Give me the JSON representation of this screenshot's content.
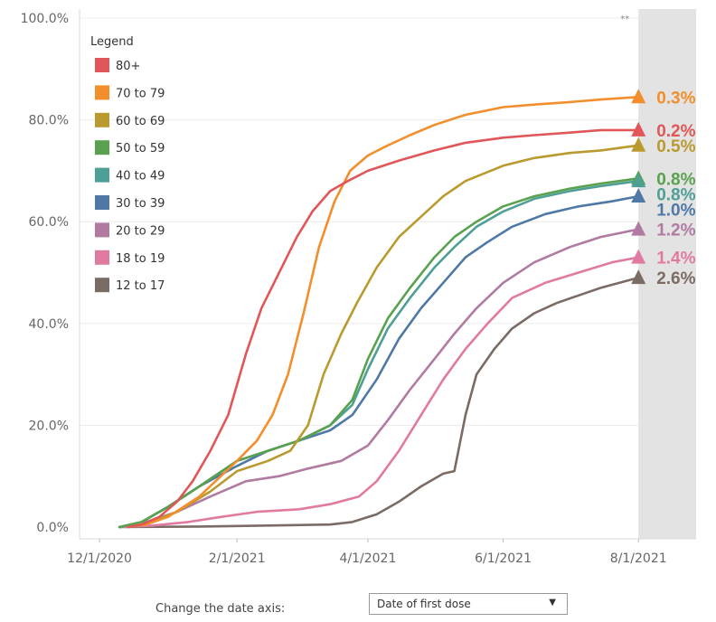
{
  "chart_data": {
    "type": "line",
    "legend_title": "Legend",
    "legend_position": "top-left",
    "ylim": [
      0,
      100
    ],
    "yticks": [
      0,
      20,
      40,
      60,
      80,
      100
    ],
    "ytick_labels": [
      "0.0%",
      "20.0%",
      "40.0%",
      "60.0%",
      "80.0%",
      "100.0%"
    ],
    "xlim": [
      "2020-11-22",
      "2021-08-27"
    ],
    "xticks": [
      "2020-12-01",
      "2021-02-01",
      "2021-04-01",
      "2021-06-01",
      "2021-08-01"
    ],
    "xtick_labels": [
      "12/1/2020",
      "2/1/2021",
      "4/1/2021",
      "6/1/2021",
      "8/1/2021"
    ],
    "shaded_region": {
      "from": "2021-08-01",
      "to": "2021-08-27",
      "note": "**",
      "color": "#e3e3e3"
    },
    "grid": "horizontal",
    "series": [
      {
        "name": "80+",
        "color": "#e15759",
        "end_label": "0.2%",
        "x": [
          "2020-12-14",
          "2020-12-20",
          "2020-12-28",
          "2021-01-05",
          "2021-01-12",
          "2021-01-20",
          "2021-01-28",
          "2021-02-05",
          "2021-02-12",
          "2021-02-20",
          "2021-02-28",
          "2021-03-07",
          "2021-03-15",
          "2021-03-23",
          "2021-04-01",
          "2021-04-15",
          "2021-05-01",
          "2021-05-15",
          "2021-06-01",
          "2021-06-15",
          "2021-07-01",
          "2021-07-15",
          "2021-08-01"
        ],
        "y": [
          0,
          0.5,
          2,
          5,
          9,
          15,
          22,
          34,
          43,
          50,
          57,
          62,
          66,
          68,
          70,
          72,
          74,
          75.5,
          76.5,
          77,
          77.5,
          78,
          78
        ]
      },
      {
        "name": "70 to 79",
        "color": "#f28e2b",
        "end_label": "0.3%",
        "x": [
          "2020-12-14",
          "2020-12-22",
          "2021-01-01",
          "2021-01-15",
          "2021-02-01",
          "2021-02-10",
          "2021-02-17",
          "2021-02-24",
          "2021-03-03",
          "2021-03-10",
          "2021-03-17",
          "2021-03-24",
          "2021-04-01",
          "2021-04-10",
          "2021-04-20",
          "2021-05-01",
          "2021-05-15",
          "2021-06-01",
          "2021-06-15",
          "2021-07-01",
          "2021-07-15",
          "2021-08-01"
        ],
        "y": [
          0,
          0.5,
          2,
          6,
          13,
          17,
          22,
          30,
          42,
          55,
          64,
          70,
          73,
          75,
          77,
          79,
          81,
          82.5,
          83,
          83.5,
          84,
          84.5
        ]
      },
      {
        "name": "60 to 69",
        "color": "#b99a2e",
        "end_label": "0.5%",
        "x": [
          "2020-12-14",
          "2020-12-24",
          "2021-01-05",
          "2021-01-20",
          "2021-02-01",
          "2021-02-15",
          "2021-02-25",
          "2021-03-05",
          "2021-03-12",
          "2021-03-20",
          "2021-03-27",
          "2021-04-05",
          "2021-04-15",
          "2021-04-25",
          "2021-05-05",
          "2021-05-15",
          "2021-06-01",
          "2021-06-15",
          "2021-07-01",
          "2021-07-15",
          "2021-08-01"
        ],
        "y": [
          0,
          1,
          3,
          7,
          11,
          13,
          15,
          20,
          30,
          38,
          44,
          51,
          57,
          61,
          65,
          68,
          71,
          72.5,
          73.5,
          74,
          75
        ]
      },
      {
        "name": "50 to 59",
        "color": "#59a14f",
        "end_label": "0.8%",
        "x": [
          "2020-12-10",
          "2020-12-20",
          "2021-01-01",
          "2021-01-15",
          "2021-02-01",
          "2021-02-15",
          "2021-03-01",
          "2021-03-15",
          "2021-03-25",
          "2021-04-01",
          "2021-04-10",
          "2021-04-20",
          "2021-05-01",
          "2021-05-10",
          "2021-05-20",
          "2021-06-01",
          "2021-06-15",
          "2021-07-01",
          "2021-07-15",
          "2021-08-01"
        ],
        "y": [
          0,
          1,
          4,
          8,
          13,
          15,
          17,
          20,
          25,
          33,
          41,
          47,
          53,
          57,
          60,
          63,
          65,
          66.5,
          67.5,
          68.5
        ]
      },
      {
        "name": "40 to 49",
        "color": "#4e9f95",
        "end_label": "0.8%",
        "x": [
          "2020-12-10",
          "2020-12-20",
          "2021-01-01",
          "2021-01-15",
          "2021-02-01",
          "2021-02-15",
          "2021-03-01",
          "2021-03-15",
          "2021-03-25",
          "2021-04-01",
          "2021-04-10",
          "2021-04-20",
          "2021-05-01",
          "2021-05-10",
          "2021-05-20",
          "2021-06-01",
          "2021-06-15",
          "2021-07-01",
          "2021-07-15",
          "2021-08-01"
        ],
        "y": [
          0,
          1,
          4,
          8,
          13,
          15,
          17,
          20,
          24,
          31,
          39,
          45,
          51,
          55,
          59,
          62,
          64.5,
          66,
          67,
          68
        ]
      },
      {
        "name": "30 to 39",
        "color": "#4e79a7",
        "end_label": "1.0%",
        "x": [
          "2020-12-10",
          "2020-12-20",
          "2021-01-01",
          "2021-01-15",
          "2021-02-01",
          "2021-02-15",
          "2021-03-01",
          "2021-03-15",
          "2021-03-25",
          "2021-04-05",
          "2021-04-15",
          "2021-04-25",
          "2021-05-05",
          "2021-05-15",
          "2021-05-25",
          "2021-06-05",
          "2021-06-20",
          "2021-07-05",
          "2021-07-20",
          "2021-08-01"
        ],
        "y": [
          0,
          1,
          4,
          8,
          12,
          15,
          17,
          19,
          22,
          29,
          37,
          43,
          48,
          53,
          56,
          59,
          61.5,
          63,
          64,
          65
        ]
      },
      {
        "name": "20 to 29",
        "color": "#b07aa1",
        "end_label": "1.2%",
        "x": [
          "2020-12-10",
          "2020-12-22",
          "2021-01-05",
          "2021-01-20",
          "2021-02-05",
          "2021-02-20",
          "2021-03-05",
          "2021-03-20",
          "2021-04-01",
          "2021-04-10",
          "2021-04-20",
          "2021-05-01",
          "2021-05-10",
          "2021-05-20",
          "2021-06-01",
          "2021-06-15",
          "2021-07-01",
          "2021-07-15",
          "2021-08-01"
        ],
        "y": [
          0,
          1,
          3,
          6,
          9,
          10,
          11.5,
          13,
          16,
          21,
          27,
          33,
          38,
          43,
          48,
          52,
          55,
          57,
          58.5
        ]
      },
      {
        "name": "18 to 19",
        "color": "#e17aa0",
        "end_label": "1.4%",
        "x": [
          "2020-12-10",
          "2020-12-25",
          "2021-01-10",
          "2021-01-25",
          "2021-02-10",
          "2021-03-01",
          "2021-03-15",
          "2021-03-28",
          "2021-04-05",
          "2021-04-15",
          "2021-04-25",
          "2021-05-05",
          "2021-05-15",
          "2021-05-25",
          "2021-06-05",
          "2021-06-20",
          "2021-07-05",
          "2021-07-20",
          "2021-08-01"
        ],
        "y": [
          0,
          0.3,
          1,
          2,
          3,
          3.5,
          4.5,
          6,
          9,
          15,
          22,
          29,
          35,
          40,
          45,
          48,
          50,
          52,
          53
        ]
      },
      {
        "name": "12 to 17",
        "color": "#7a6b65",
        "end_label": "2.6%",
        "x": [
          "2020-12-10",
          "2021-01-15",
          "2021-02-15",
          "2021-03-15",
          "2021-03-25",
          "2021-04-05",
          "2021-04-15",
          "2021-04-25",
          "2021-05-05",
          "2021-05-10",
          "2021-05-15",
          "2021-05-20",
          "2021-05-28",
          "2021-06-05",
          "2021-06-15",
          "2021-06-25",
          "2021-07-05",
          "2021-07-15",
          "2021-08-01"
        ],
        "y": [
          0,
          0.1,
          0.3,
          0.5,
          1,
          2.5,
          5,
          8,
          10.5,
          11,
          22,
          30,
          35,
          39,
          42,
          44,
          45.5,
          47,
          49
        ]
      }
    ]
  },
  "footer": {
    "axis_control_label": "Change the date axis:",
    "axis_control_value": "Date of first dose",
    "dropdown_icon": "triangle-down-icon"
  }
}
